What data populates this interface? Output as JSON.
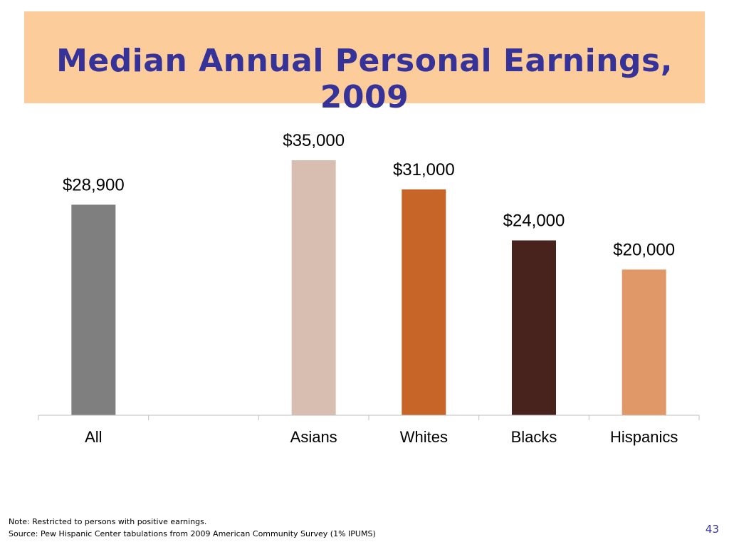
{
  "slide": {
    "title": "Median Annual Personal Earnings, 2009",
    "note": "Note: Restricted to persons with positive earnings.",
    "source": "Source: Pew Hispanic Center tabulations from 2009 American Community Survey (1% IPUMS)",
    "page_number": "43"
  },
  "chart_data": {
    "type": "bar",
    "categories": [
      "All",
      "",
      "Asians",
      "Whites",
      "Blacks",
      "Hispanics"
    ],
    "values": [
      28900,
      null,
      35000,
      31000,
      24000,
      20000
    ],
    "value_labels": [
      "$28,900",
      "",
      "$35,000",
      "$31,000",
      "$24,000",
      "$20,000"
    ],
    "colors": [
      "#7f7f7f",
      "",
      "#d8beb0",
      "#c66527",
      "#48231d",
      "#e09868"
    ],
    "ylim": [
      0,
      35000
    ],
    "grid": false,
    "legend": "none"
  }
}
